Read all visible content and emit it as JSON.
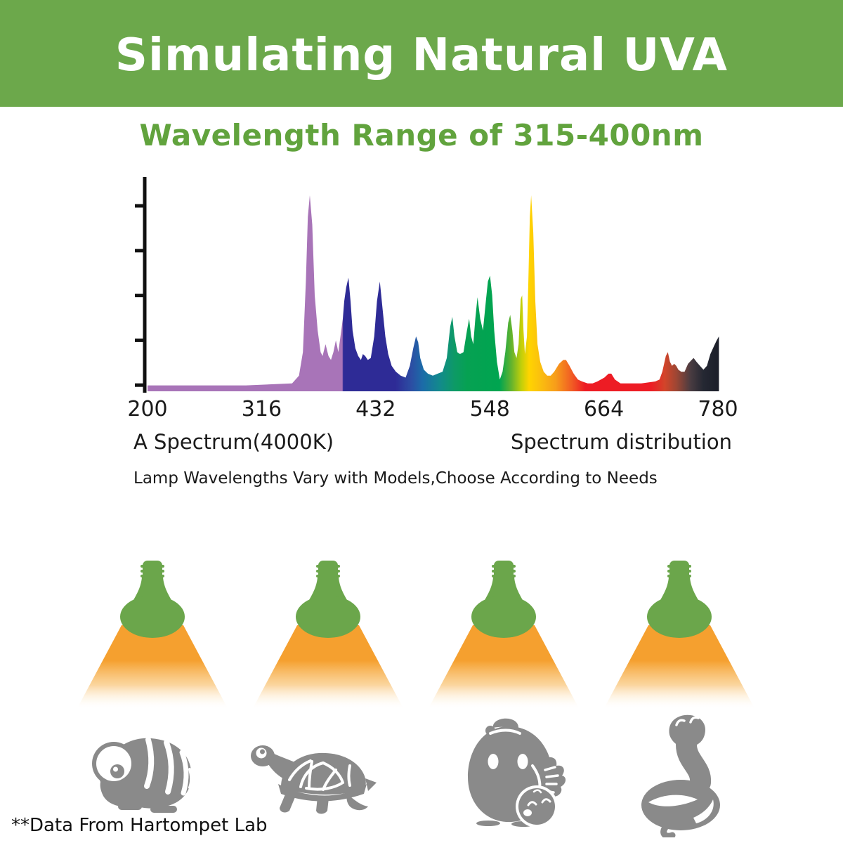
{
  "banner": {
    "title": "Simulating Natural UVA",
    "bg_color": "#6CA84B",
    "text_color": "#FFFFFF"
  },
  "subtitle": {
    "text": "Wavelength Range of 315-400nm",
    "color": "#61A33D"
  },
  "chart_data": {
    "type": "area",
    "title": "",
    "xlabel": "",
    "ylabel": "",
    "legend": [],
    "grid": false,
    "x_ticks": [
      200,
      316,
      432,
      548,
      664,
      780
    ],
    "x_range": [
      200,
      781
    ],
    "y_range": [
      0,
      1
    ],
    "y_axis_labeled": false,
    "y_tick_count": 5,
    "series_name": "A Spectrum(4000K) spectral power distribution, normalized intensity vs wavelength (nm)",
    "points": [
      [
        200,
        0.03
      ],
      [
        300,
        0.03
      ],
      [
        347,
        0.04
      ],
      [
        354,
        0.08
      ],
      [
        358,
        0.2
      ],
      [
        361,
        0.56
      ],
      [
        363,
        0.89
      ],
      [
        365,
        1.0
      ],
      [
        367.5,
        0.85
      ],
      [
        370,
        0.49
      ],
      [
        373,
        0.31
      ],
      [
        376,
        0.2
      ],
      [
        378,
        0.18
      ],
      [
        381,
        0.24
      ],
      [
        384,
        0.18
      ],
      [
        386.5,
        0.16
      ],
      [
        389,
        0.2
      ],
      [
        391.5,
        0.26
      ],
      [
        394,
        0.2
      ],
      [
        397,
        0.31
      ],
      [
        398.6,
        0.37
      ],
      [
        400,
        0.46
      ],
      [
        402,
        0.53
      ],
      [
        404.3,
        0.58
      ],
      [
        406.4,
        0.46
      ],
      [
        408.5,
        0.31
      ],
      [
        411.3,
        0.22
      ],
      [
        414.2,
        0.18
      ],
      [
        417,
        0.16
      ],
      [
        419,
        0.19
      ],
      [
        421.3,
        0.18
      ],
      [
        424,
        0.16
      ],
      [
        427,
        0.17
      ],
      [
        430.5,
        0.28
      ],
      [
        433.3,
        0.46
      ],
      [
        436.2,
        0.56
      ],
      [
        439,
        0.42
      ],
      [
        441.8,
        0.28
      ],
      [
        444.7,
        0.19
      ],
      [
        448.2,
        0.13
      ],
      [
        452.5,
        0.1
      ],
      [
        457.4,
        0.08
      ],
      [
        462.4,
        0.07
      ],
      [
        466.7,
        0.13
      ],
      [
        470.2,
        0.22
      ],
      [
        473,
        0.28
      ],
      [
        475.2,
        0.25
      ],
      [
        477.3,
        0.17
      ],
      [
        480.9,
        0.11
      ],
      [
        485.1,
        0.09
      ],
      [
        490.1,
        0.08
      ],
      [
        495.1,
        0.09
      ],
      [
        500,
        0.1
      ],
      [
        504.3,
        0.17
      ],
      [
        507.8,
        0.33
      ],
      [
        509.9,
        0.38
      ],
      [
        512.1,
        0.28
      ],
      [
        514.9,
        0.2
      ],
      [
        517.7,
        0.19
      ],
      [
        521.3,
        0.2
      ],
      [
        524.8,
        0.31
      ],
      [
        527,
        0.37
      ],
      [
        529.1,
        0.28
      ],
      [
        531.2,
        0.24
      ],
      [
        533.3,
        0.37
      ],
      [
        535.5,
        0.48
      ],
      [
        538.3,
        0.37
      ],
      [
        541.1,
        0.31
      ],
      [
        544,
        0.46
      ],
      [
        546.1,
        0.56
      ],
      [
        548.2,
        0.59
      ],
      [
        550.4,
        0.49
      ],
      [
        552.5,
        0.31
      ],
      [
        555.3,
        0.15
      ],
      [
        558.2,
        0.06
      ],
      [
        561,
        0.1
      ],
      [
        563.8,
        0.2
      ],
      [
        566.7,
        0.35
      ],
      [
        568.8,
        0.39
      ],
      [
        570.9,
        0.31
      ],
      [
        573,
        0.2
      ],
      [
        575.2,
        0.17
      ],
      [
        577.3,
        0.24
      ],
      [
        579.4,
        0.47
      ],
      [
        580.9,
        0.49
      ],
      [
        582.3,
        0.31
      ],
      [
        583.7,
        0.19
      ],
      [
        585.8,
        0.28
      ],
      [
        587.2,
        0.56
      ],
      [
        588.7,
        0.89
      ],
      [
        590.1,
        1.0
      ],
      [
        592.2,
        0.81
      ],
      [
        594.3,
        0.46
      ],
      [
        596.5,
        0.24
      ],
      [
        599.3,
        0.15
      ],
      [
        602.8,
        0.1
      ],
      [
        606.4,
        0.08
      ],
      [
        609.9,
        0.08
      ],
      [
        613.5,
        0.1
      ],
      [
        618.4,
        0.14
      ],
      [
        622.7,
        0.16
      ],
      [
        625.5,
        0.16
      ],
      [
        629.1,
        0.13
      ],
      [
        633.3,
        0.09
      ],
      [
        637.6,
        0.06
      ],
      [
        641.8,
        0.05
      ],
      [
        647.5,
        0.04
      ],
      [
        652.5,
        0.04
      ],
      [
        657.4,
        0.05
      ],
      [
        664.5,
        0.07
      ],
      [
        668.8,
        0.09
      ],
      [
        671.6,
        0.09
      ],
      [
        675.2,
        0.06
      ],
      [
        680.9,
        0.04
      ],
      [
        688,
        0.04
      ],
      [
        702,
        0.04
      ],
      [
        716.3,
        0.05
      ],
      [
        720.6,
        0.06
      ],
      [
        723.4,
        0.1
      ],
      [
        727,
        0.18
      ],
      [
        729.1,
        0.2
      ],
      [
        731.2,
        0.15
      ],
      [
        733.3,
        0.13
      ],
      [
        735.5,
        0.14
      ],
      [
        737.6,
        0.13
      ],
      [
        739.7,
        0.11
      ],
      [
        742.6,
        0.1
      ],
      [
        746.1,
        0.1
      ],
      [
        749.6,
        0.14
      ],
      [
        753.2,
        0.16
      ],
      [
        755.3,
        0.17
      ],
      [
        758.2,
        0.15
      ],
      [
        761.7,
        0.13
      ],
      [
        765.2,
        0.11
      ],
      [
        768.8,
        0.13
      ],
      [
        772.3,
        0.19
      ],
      [
        775.9,
        0.23
      ],
      [
        778.7,
        0.26
      ],
      [
        781,
        0.28
      ]
    ],
    "gradient_stops": [
      [
        200,
        "#A874B8"
      ],
      [
        398,
        "#A874B8"
      ],
      [
        399,
        "#2E2B96"
      ],
      [
        452,
        "#2E2B96"
      ],
      [
        468,
        "#2C4DA3"
      ],
      [
        480,
        "#1B6CA8"
      ],
      [
        497,
        "#128A8C"
      ],
      [
        512,
        "#0D9A66"
      ],
      [
        525,
        "#06A152"
      ],
      [
        558,
        "#00A550"
      ],
      [
        570,
        "#64B32E"
      ],
      [
        580,
        "#C1CF0A"
      ],
      [
        588,
        "#FFD400"
      ],
      [
        598,
        "#FBC20D"
      ],
      [
        615,
        "#F79D1A"
      ],
      [
        632,
        "#F15A24"
      ],
      [
        645,
        "#ED1C24"
      ],
      [
        712,
        "#ED1C24"
      ],
      [
        726,
        "#D2452A"
      ],
      [
        738,
        "#9C4634"
      ],
      [
        752,
        "#4A3C41"
      ],
      [
        765,
        "#252833"
      ],
      [
        781,
        "#1B1E29"
      ]
    ]
  },
  "captions": {
    "left": "A Spectrum(4000K)",
    "right": "Spectrum distribution",
    "note": "Lamp Wavelengths Vary with Models,Choose According to Needs"
  },
  "lamps": {
    "count": 4,
    "icon": "uva-bulb-with-light-beam",
    "bulb_color": "#6BA64B",
    "beam_color": "#F5A02F"
  },
  "animals": {
    "color": "#8A8A8A",
    "items": [
      "chameleon",
      "turtle",
      "hen-with-chick",
      "snake"
    ]
  },
  "footer": {
    "note": "**Data From Hartompet Lab"
  }
}
